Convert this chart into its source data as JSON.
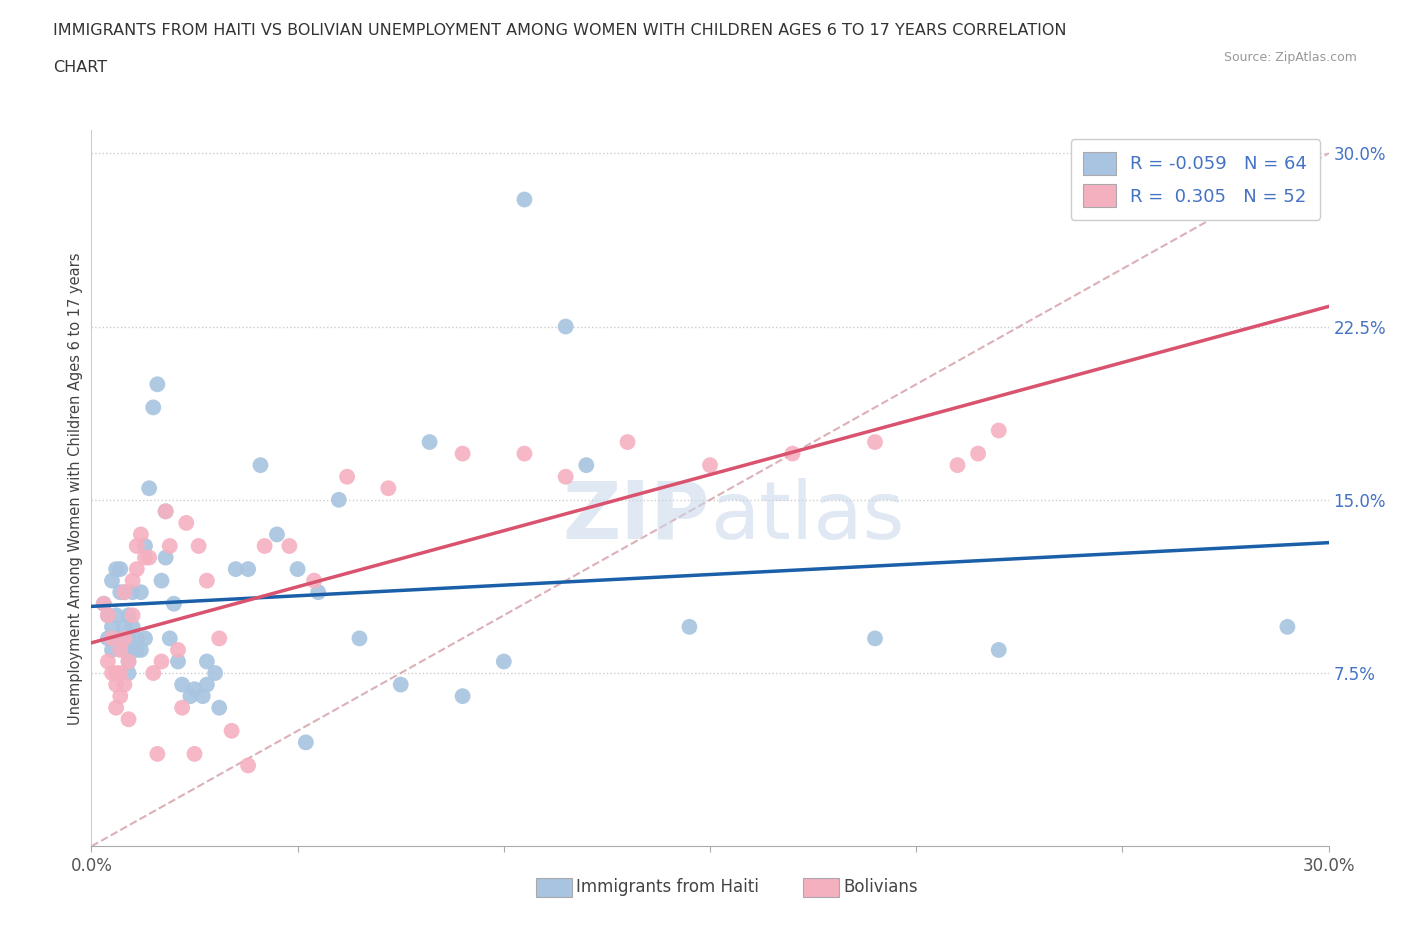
{
  "title_line1": "IMMIGRANTS FROM HAITI VS BOLIVIAN UNEMPLOYMENT AMONG WOMEN WITH CHILDREN AGES 6 TO 17 YEARS CORRELATION",
  "title_line2": "CHART",
  "source": "Source: ZipAtlas.com",
  "ylabel": "Unemployment Among Women with Children Ages 6 to 17 years",
  "legend_label1": "Immigrants from Haiti",
  "legend_label2": "Bolivians",
  "R1": -0.059,
  "N1": 64,
  "R2": 0.305,
  "N2": 52,
  "color_haiti": "#a8c4e0",
  "color_bolivia": "#f5b0c0",
  "line_color_haiti": "#1a5fa8",
  "line_color_bolivia": "#d9536e",
  "dashed_line_color": "#d8a8b0",
  "watermark_zip": "ZIP",
  "watermark_atlas": "atlas",
  "haiti_x": [
    0.003,
    0.004,
    0.004,
    0.005,
    0.005,
    0.005,
    0.006,
    0.006,
    0.007,
    0.007,
    0.007,
    0.008,
    0.008,
    0.008,
    0.009,
    0.009,
    0.009,
    0.009,
    0.01,
    0.01,
    0.01,
    0.011,
    0.011,
    0.012,
    0.012,
    0.013,
    0.013,
    0.014,
    0.015,
    0.016,
    0.017,
    0.018,
    0.018,
    0.019,
    0.02,
    0.021,
    0.022,
    0.024,
    0.025,
    0.027,
    0.028,
    0.028,
    0.03,
    0.031,
    0.035,
    0.038,
    0.041,
    0.045,
    0.05,
    0.052,
    0.055,
    0.06,
    0.065,
    0.075,
    0.082,
    0.09,
    0.1,
    0.105,
    0.115,
    0.12,
    0.145,
    0.19,
    0.22,
    0.29
  ],
  "haiti_y": [
    0.105,
    0.09,
    0.1,
    0.085,
    0.095,
    0.115,
    0.12,
    0.1,
    0.12,
    0.11,
    0.09,
    0.085,
    0.095,
    0.11,
    0.09,
    0.08,
    0.1,
    0.075,
    0.085,
    0.095,
    0.11,
    0.085,
    0.09,
    0.11,
    0.085,
    0.13,
    0.09,
    0.155,
    0.19,
    0.2,
    0.115,
    0.125,
    0.145,
    0.09,
    0.105,
    0.08,
    0.07,
    0.065,
    0.068,
    0.065,
    0.08,
    0.07,
    0.075,
    0.06,
    0.12,
    0.12,
    0.165,
    0.135,
    0.12,
    0.045,
    0.11,
    0.15,
    0.09,
    0.07,
    0.175,
    0.065,
    0.08,
    0.28,
    0.225,
    0.165,
    0.095,
    0.09,
    0.085,
    0.095
  ],
  "bolivia_x": [
    0.003,
    0.004,
    0.004,
    0.005,
    0.005,
    0.006,
    0.006,
    0.006,
    0.007,
    0.007,
    0.007,
    0.008,
    0.008,
    0.008,
    0.009,
    0.009,
    0.01,
    0.01,
    0.011,
    0.011,
    0.012,
    0.013,
    0.014,
    0.015,
    0.016,
    0.017,
    0.018,
    0.019,
    0.021,
    0.022,
    0.023,
    0.025,
    0.026,
    0.028,
    0.031,
    0.034,
    0.038,
    0.042,
    0.048,
    0.054,
    0.062,
    0.072,
    0.09,
    0.105,
    0.115,
    0.13,
    0.15,
    0.17,
    0.19,
    0.21,
    0.215,
    0.22
  ],
  "bolivia_y": [
    0.105,
    0.08,
    0.1,
    0.075,
    0.09,
    0.06,
    0.07,
    0.075,
    0.065,
    0.075,
    0.085,
    0.07,
    0.09,
    0.11,
    0.055,
    0.08,
    0.1,
    0.115,
    0.12,
    0.13,
    0.135,
    0.125,
    0.125,
    0.075,
    0.04,
    0.08,
    0.145,
    0.13,
    0.085,
    0.06,
    0.14,
    0.04,
    0.13,
    0.115,
    0.09,
    0.05,
    0.035,
    0.13,
    0.13,
    0.115,
    0.16,
    0.155,
    0.17,
    0.17,
    0.16,
    0.175,
    0.165,
    0.17,
    0.175,
    0.165,
    0.17,
    0.18
  ],
  "xmin": 0.0,
  "xmax": 0.3,
  "ymin": 0.0,
  "ymax": 0.31,
  "ytick_vals": [
    0.075,
    0.15,
    0.225,
    0.3
  ],
  "ytick_labels": [
    "7.5%",
    "15.0%",
    "22.5%",
    "30.0%"
  ],
  "xtick_vals": [
    0.0,
    0.05,
    0.1,
    0.15,
    0.2,
    0.25,
    0.3
  ],
  "xtick_labels": [
    "0.0%",
    "",
    "",
    "",
    "",
    "",
    "30.0%"
  ]
}
